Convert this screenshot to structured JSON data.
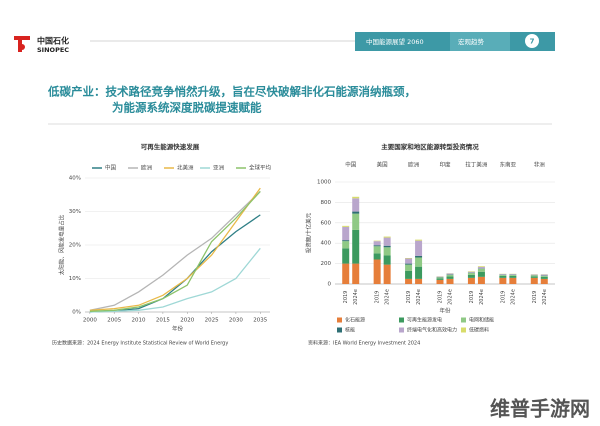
{
  "header": {
    "logo_cn": "中国石化",
    "logo_en": "SINOPEC",
    "report": "中国能源展望 2060",
    "section": "宏观趋势",
    "page": "7"
  },
  "heading": [
    "低碳产业：技术路径竞争悄然升级，旨在尽快破解非化石能源消纳瓶颈，",
    "为能源系统深度脱碳提速赋能"
  ],
  "chart_data": [
    {
      "type": "line",
      "title": "可再生能源快速发展",
      "y_label": "太阳能、风能发电量占比",
      "x_label": "年份",
      "note": "历史数据来源：2024 Energy Institute Statistical Review of World Energy",
      "x": [
        2000,
        2005,
        2010,
        2015,
        2020,
        2025,
        2030,
        2035
      ],
      "xlim": [
        1999,
        2037
      ],
      "xticks": [
        2000,
        2005,
        2010,
        2015,
        2020,
        2025,
        2030,
        2035
      ],
      "ylim": [
        0,
        40
      ],
      "yticks": [
        {
          "value": 0,
          "label": "0%"
        },
        {
          "value": 10,
          "label": "10%"
        },
        {
          "value": 20,
          "label": "20%"
        },
        {
          "value": 30,
          "label": "30%"
        },
        {
          "value": 40,
          "label": "40%"
        }
      ],
      "series": [
        {
          "name": "中国",
          "color": "#2f7f86",
          "values": [
            0,
            0.3,
            1,
            4,
            10,
            18,
            24,
            29
          ]
        },
        {
          "name": "欧洲",
          "color": "#b5b5b5",
          "values": [
            0.5,
            2,
            6,
            11,
            17,
            22,
            29,
            36
          ]
        },
        {
          "name": "北美洲",
          "color": "#e9b949",
          "values": [
            0.5,
            1,
            2,
            5,
            10,
            17,
            27,
            37
          ]
        },
        {
          "name": "亚洲",
          "color": "#9fd8d6",
          "values": [
            0,
            0.2,
            0.5,
            1.5,
            4,
            6,
            10,
            19
          ]
        },
        {
          "name": "全球平均",
          "color": "#8cc36a",
          "values": [
            0.2,
            0.5,
            1.5,
            4,
            8,
            21,
            28,
            36
          ]
        }
      ]
    },
    {
      "type": "stacked_bar",
      "title": "主要国家和地区能源转型投资情况",
      "y_label": "投资额/十亿美元",
      "x_label": "年份",
      "note": "资料来源：IEA World Energy Investment 2024",
      "groups": [
        "中国",
        "美国",
        "欧洲",
        "印度",
        "拉丁美洲",
        "东南亚",
        "非洲"
      ],
      "categories": [
        "2019",
        "2024e",
        "2019",
        "2024e",
        "2019",
        "2024e",
        "2019",
        "2024e",
        "2019",
        "2024e",
        "2019",
        "2024e",
        "2019",
        "2024e"
      ],
      "ylim": [
        0,
        1000
      ],
      "yticks": [
        0,
        200,
        400,
        600,
        800,
        1000
      ],
      "series": [
        {
          "name": "化石能源",
          "color": "#e67e3a",
          "values": [
            200,
            200,
            240,
            190,
            50,
            50,
            40,
            50,
            60,
            70,
            60,
            60,
            60,
            50
          ]
        },
        {
          "name": "可再生能源发电",
          "color": "#3c9a5f",
          "values": [
            150,
            330,
            60,
            90,
            80,
            120,
            15,
            25,
            30,
            50,
            20,
            20,
            15,
            20
          ]
        },
        {
          "name": "电网和储能",
          "color": "#8fc985",
          "values": [
            70,
            160,
            70,
            80,
            60,
            90,
            10,
            15,
            20,
            30,
            10,
            10,
            10,
            10
          ]
        },
        {
          "name": "核能",
          "color": "#2e6f74",
          "values": [
            10,
            20,
            10,
            15,
            10,
            15,
            3,
            5,
            2,
            3,
            2,
            2,
            2,
            3
          ]
        },
        {
          "name": "终端电气化和高效电力",
          "color": "#b9a6cc",
          "values": [
            130,
            130,
            40,
            80,
            50,
            150,
            5,
            8,
            8,
            15,
            6,
            6,
            6,
            10
          ]
        },
        {
          "name": "低碳燃料",
          "color": "#d8dc6a",
          "values": [
            10,
            15,
            5,
            10,
            5,
            10,
            2,
            2,
            5,
            7,
            2,
            2,
            2,
            2
          ]
        }
      ]
    }
  ],
  "watermark": "维普手游网"
}
